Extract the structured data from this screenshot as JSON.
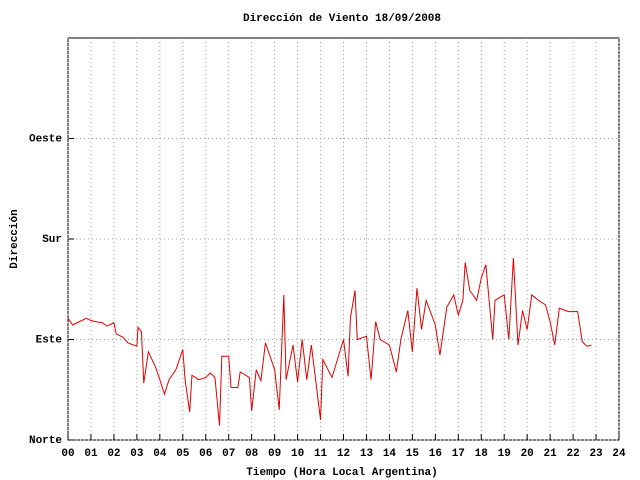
{
  "chart_data": {
    "type": "line",
    "title": "Dirección de Viento 18/09/2008",
    "x_label": "Tiempo (Hora Local Argentina)",
    "y_label": "Dirección",
    "xlim": [
      0,
      24
    ],
    "ylim": [
      0,
      360
    ],
    "grid": true,
    "xticks": [
      {
        "value": 0,
        "label": "00"
      },
      {
        "value": 1,
        "label": "01"
      },
      {
        "value": 2,
        "label": "02"
      },
      {
        "value": 3,
        "label": "03"
      },
      {
        "value": 4,
        "label": "04"
      },
      {
        "value": 5,
        "label": "05"
      },
      {
        "value": 6,
        "label": "06"
      },
      {
        "value": 7,
        "label": "07"
      },
      {
        "value": 8,
        "label": "08"
      },
      {
        "value": 9,
        "label": "09"
      },
      {
        "value": 10,
        "label": "10"
      },
      {
        "value": 11,
        "label": "11"
      },
      {
        "value": 12,
        "label": "12"
      },
      {
        "value": 13,
        "label": "13"
      },
      {
        "value": 14,
        "label": "14"
      },
      {
        "value": 15,
        "label": "15"
      },
      {
        "value": 16,
        "label": "16"
      },
      {
        "value": 17,
        "label": "17"
      },
      {
        "value": 18,
        "label": "18"
      },
      {
        "value": 19,
        "label": "19"
      },
      {
        "value": 20,
        "label": "20"
      },
      {
        "value": 21,
        "label": "21"
      },
      {
        "value": 22,
        "label": "22"
      },
      {
        "value": 23,
        "label": "23"
      },
      {
        "value": 24,
        "label": "24"
      }
    ],
    "yticks": [
      {
        "value": 0,
        "label": "Norte"
      },
      {
        "value": 90,
        "label": "Este"
      },
      {
        "value": 180,
        "label": "Sur"
      },
      {
        "value": 270,
        "label": "Oeste"
      }
    ],
    "x": [
      0.0,
      0.2,
      0.5,
      0.8,
      1.0,
      1.2,
      1.5,
      1.7,
      2.0,
      2.1,
      2.4,
      2.6,
      3.0,
      3.05,
      3.2,
      3.3,
      3.5,
      3.8,
      4.0,
      4.2,
      4.4,
      4.7,
      5.0,
      5.1,
      5.3,
      5.4,
      5.7,
      6.0,
      6.2,
      6.4,
      6.6,
      6.7,
      7.0,
      7.1,
      7.4,
      7.5,
      7.9,
      8.0,
      8.2,
      8.4,
      8.6,
      9.0,
      9.2,
      9.4,
      9.5,
      9.8,
      10.0,
      10.2,
      10.4,
      10.6,
      11.0,
      11.1,
      11.5,
      12.0,
      12.2,
      12.3,
      12.5,
      12.6,
      13.0,
      13.2,
      13.4,
      13.6,
      14.0,
      14.3,
      14.5,
      14.8,
      15.0,
      15.2,
      15.4,
      15.6,
      16.0,
      16.2,
      16.5,
      16.8,
      17.0,
      17.2,
      17.3,
      17.5,
      17.8,
      18.0,
      18.2,
      18.5,
      18.6,
      19.0,
      19.2,
      19.4,
      19.6,
      19.8,
      20.0,
      20.2,
      20.5,
      20.8,
      21.0,
      21.2,
      21.4,
      21.8,
      22.0,
      22.2,
      22.4,
      22.6,
      22.8
    ],
    "series": [
      {
        "color": "#e00000",
        "values": [
          109,
          103,
          106,
          109,
          107,
          106,
          105,
          102,
          105,
          95,
          92,
          87,
          84,
          101,
          97,
          51,
          79,
          66,
          54,
          41,
          54,
          63,
          81,
          54,
          25,
          58,
          54,
          56,
          60,
          56,
          13,
          75,
          75,
          47,
          47,
          61,
          56,
          26,
          63,
          53,
          87,
          63,
          27,
          130,
          54,
          85,
          52,
          90,
          54,
          85,
          18,
          72,
          56,
          90,
          57,
          109,
          134,
          90,
          93,
          54,
          106,
          90,
          85,
          61,
          90,
          116,
          79,
          136,
          99,
          125,
          103,
          76,
          119,
          130,
          112,
          125,
          159,
          134,
          125,
          145,
          157,
          90,
          125,
          130,
          90,
          163,
          85,
          116,
          99,
          130,
          125,
          121,
          106,
          85,
          118,
          115,
          115,
          115,
          88,
          84,
          85
        ]
      }
    ]
  }
}
